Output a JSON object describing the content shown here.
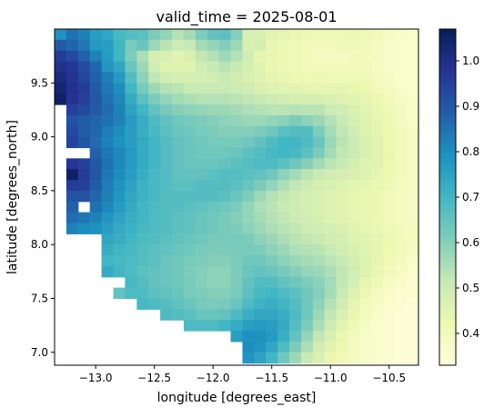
{
  "chart_data": {
    "type": "heatmap",
    "title": "valid_time = 2025-08-01",
    "xlabel": "longitude [degrees_east]",
    "ylabel": "latitude [degrees_north]",
    "xlim": [
      -13.35,
      -10.25
    ],
    "ylim": [
      6.88,
      10.0
    ],
    "x_ticks": [
      -13.0,
      -12.5,
      -12.0,
      -11.5,
      -11.0,
      -10.5
    ],
    "x_tick_labels": [
      "−13.0",
      "−12.5",
      "−12.0",
      "−11.5",
      "−11.0",
      "−10.5"
    ],
    "y_ticks": [
      7.0,
      7.5,
      8.0,
      8.5,
      9.0,
      9.5
    ],
    "y_tick_labels": [
      "7.0",
      "7.5",
      "8.0",
      "8.5",
      "9.0",
      "9.5"
    ],
    "colorbar": {
      "colormap": "YlGnBu",
      "vmin": 0.33,
      "vmax": 1.07,
      "ticks": [
        0.4,
        0.5,
        0.6,
        0.7,
        0.8,
        0.9,
        1.0
      ],
      "tick_labels": [
        "0.4",
        "0.5",
        "0.6",
        "0.7",
        "0.8",
        "0.9",
        "1.0"
      ]
    },
    "grid": false,
    "grid_origin": {
      "lon0": -13.35,
      "lat_top": 10.0
    },
    "cell_size_deg": 0.1,
    "cols": 31,
    "rows": 31,
    "values": [
      [
        0.79,
        0.85,
        0.82,
        0.76,
        0.74,
        0.69,
        0.67,
        0.66,
        0.61,
        0.58,
        0.54,
        0.56,
        0.61,
        0.65,
        0.66,
        0.6,
        0.47,
        0.47,
        0.45,
        0.44,
        0.43,
        0.42,
        0.41,
        0.41,
        0.41,
        0.42,
        0.41,
        0.4,
        0.38,
        0.37,
        0.36
      ],
      [
        0.89,
        0.87,
        0.84,
        0.77,
        0.76,
        0.7,
        0.62,
        0.64,
        0.57,
        0.53,
        0.5,
        0.51,
        0.56,
        0.58,
        0.6,
        0.57,
        0.47,
        0.48,
        0.43,
        0.42,
        0.41,
        0.4,
        0.4,
        0.4,
        0.41,
        0.41,
        0.4,
        0.39,
        0.37,
        0.36,
        0.36
      ],
      [
        0.96,
        0.93,
        0.88,
        0.82,
        0.77,
        0.7,
        0.61,
        0.55,
        0.48,
        0.47,
        0.45,
        0.47,
        0.52,
        0.54,
        0.57,
        0.54,
        0.49,
        0.44,
        0.43,
        0.42,
        0.41,
        0.4,
        0.39,
        0.39,
        0.39,
        0.4,
        0.4,
        0.39,
        0.37,
        0.36,
        0.36
      ],
      [
        0.99,
        0.97,
        0.93,
        0.87,
        0.78,
        0.74,
        0.64,
        0.57,
        0.49,
        0.46,
        0.46,
        0.46,
        0.49,
        0.51,
        0.53,
        0.51,
        0.48,
        0.45,
        0.43,
        0.42,
        0.41,
        0.4,
        0.4,
        0.4,
        0.4,
        0.4,
        0.4,
        0.38,
        0.37,
        0.36,
        0.36
      ],
      [
        1.01,
        0.98,
        0.94,
        0.88,
        0.83,
        0.77,
        0.67,
        0.59,
        0.52,
        0.49,
        0.48,
        0.48,
        0.48,
        0.49,
        0.51,
        0.49,
        0.47,
        0.46,
        0.44,
        0.43,
        0.42,
        0.42,
        0.42,
        0.41,
        0.41,
        0.41,
        0.41,
        0.39,
        0.38,
        0.36,
        0.36
      ],
      [
        1.03,
        0.99,
        0.96,
        0.89,
        0.84,
        0.8,
        0.7,
        0.62,
        0.57,
        0.54,
        0.53,
        0.51,
        0.51,
        0.51,
        0.51,
        0.5,
        0.49,
        0.47,
        0.46,
        0.45,
        0.45,
        0.44,
        0.44,
        0.44,
        0.44,
        0.43,
        0.42,
        0.4,
        0.39,
        0.37,
        0.36
      ],
      [
        1.05,
        0.98,
        0.95,
        0.9,
        0.85,
        0.81,
        0.73,
        0.66,
        0.61,
        0.58,
        0.56,
        0.55,
        0.54,
        0.54,
        0.54,
        0.53,
        0.52,
        0.51,
        0.5,
        0.49,
        0.48,
        0.48,
        0.48,
        0.47,
        0.46,
        0.45,
        0.44,
        0.42,
        0.4,
        0.38,
        0.37
      ],
      [
        null,
        0.95,
        0.93,
        0.89,
        0.86,
        0.82,
        0.75,
        0.7,
        0.65,
        0.62,
        0.6,
        0.59,
        0.58,
        0.57,
        0.57,
        0.56,
        0.55,
        0.54,
        0.53,
        0.53,
        0.54,
        0.53,
        0.53,
        0.5,
        0.49,
        0.47,
        0.45,
        0.43,
        0.41,
        0.39,
        0.37
      ],
      [
        null,
        0.91,
        0.89,
        0.87,
        0.85,
        0.82,
        0.77,
        0.72,
        0.68,
        0.65,
        0.63,
        0.62,
        0.61,
        0.6,
        0.59,
        0.58,
        0.57,
        0.57,
        0.58,
        0.59,
        0.61,
        0.59,
        0.57,
        0.54,
        0.51,
        0.48,
        0.46,
        0.44,
        0.42,
        0.39,
        0.37
      ],
      [
        null,
        0.93,
        0.89,
        0.87,
        0.83,
        0.8,
        0.76,
        0.72,
        0.69,
        0.66,
        0.64,
        0.63,
        0.62,
        0.61,
        0.6,
        0.6,
        0.6,
        0.61,
        0.63,
        0.66,
        0.67,
        0.67,
        0.61,
        0.56,
        0.52,
        0.49,
        0.46,
        0.44,
        0.42,
        0.4,
        0.38
      ],
      [
        null,
        0.94,
        0.9,
        0.86,
        0.82,
        0.79,
        0.76,
        0.73,
        0.7,
        0.67,
        0.65,
        0.64,
        0.63,
        0.62,
        0.62,
        0.62,
        0.63,
        0.65,
        0.68,
        0.7,
        0.7,
        0.68,
        0.64,
        0.57,
        0.53,
        0.5,
        0.47,
        0.45,
        0.42,
        0.4,
        0.38
      ],
      [
        null,
        null,
        null,
        0.88,
        0.84,
        0.81,
        0.77,
        0.73,
        0.7,
        0.67,
        0.65,
        0.64,
        0.63,
        0.63,
        0.63,
        0.64,
        0.66,
        0.67,
        0.69,
        0.7,
        0.69,
        0.66,
        0.61,
        0.56,
        0.52,
        0.5,
        0.47,
        0.45,
        0.43,
        0.4,
        0.38
      ],
      [
        null,
        0.97,
        0.95,
        0.9,
        0.85,
        0.81,
        0.77,
        0.73,
        0.7,
        0.67,
        0.65,
        0.64,
        0.64,
        0.64,
        0.65,
        0.66,
        0.67,
        0.68,
        0.68,
        0.66,
        0.63,
        0.6,
        0.56,
        0.53,
        0.51,
        0.48,
        0.46,
        0.45,
        0.42,
        0.4,
        0.38
      ],
      [
        null,
        1.05,
        0.96,
        0.9,
        0.84,
        0.8,
        0.76,
        0.72,
        0.69,
        0.67,
        0.65,
        0.65,
        0.65,
        0.66,
        0.67,
        0.67,
        0.66,
        0.65,
        0.63,
        0.59,
        0.56,
        0.53,
        0.51,
        0.49,
        0.48,
        0.47,
        0.46,
        0.44,
        0.42,
        0.4,
        0.38
      ],
      [
        null,
        0.96,
        0.95,
        0.89,
        0.83,
        0.79,
        0.75,
        0.71,
        0.69,
        0.67,
        0.66,
        0.66,
        0.67,
        0.67,
        0.67,
        0.66,
        0.64,
        0.61,
        0.58,
        0.55,
        0.52,
        0.5,
        0.48,
        0.47,
        0.46,
        0.45,
        0.44,
        0.43,
        0.41,
        0.39,
        0.38
      ],
      [
        null,
        0.91,
        0.91,
        0.87,
        0.82,
        0.78,
        0.74,
        0.71,
        0.69,
        0.67,
        0.67,
        0.67,
        0.67,
        0.67,
        0.66,
        0.64,
        0.61,
        0.57,
        0.54,
        0.52,
        0.5,
        0.48,
        0.47,
        0.46,
        0.45,
        0.44,
        0.43,
        0.42,
        0.4,
        0.39,
        0.38
      ],
      [
        null,
        0.88,
        null,
        0.85,
        0.81,
        0.77,
        0.73,
        0.7,
        0.68,
        0.67,
        0.67,
        0.66,
        0.65,
        0.64,
        0.63,
        0.61,
        0.58,
        0.55,
        0.53,
        0.51,
        0.5,
        0.48,
        0.47,
        0.46,
        0.45,
        0.44,
        0.43,
        0.42,
        0.4,
        0.39,
        0.38
      ],
      [
        null,
        0.86,
        0.84,
        0.82,
        0.78,
        0.75,
        0.72,
        0.7,
        0.68,
        0.67,
        0.66,
        0.65,
        0.64,
        0.63,
        0.62,
        0.6,
        0.58,
        0.56,
        0.54,
        0.52,
        0.5,
        0.49,
        0.48,
        0.46,
        0.45,
        0.44,
        0.43,
        0.42,
        0.4,
        0.39,
        0.38
      ],
      [
        null,
        0.82,
        0.8,
        0.79,
        0.76,
        0.73,
        0.71,
        0.69,
        0.68,
        0.67,
        0.66,
        0.65,
        0.64,
        0.63,
        0.62,
        0.61,
        0.59,
        0.57,
        0.55,
        0.53,
        0.52,
        0.5,
        0.49,
        0.48,
        0.47,
        0.45,
        0.44,
        0.43,
        0.41,
        0.4,
        0.39
      ],
      [
        null,
        null,
        null,
        null,
        0.74,
        0.72,
        0.7,
        0.68,
        0.67,
        0.66,
        0.65,
        0.64,
        0.63,
        0.62,
        0.62,
        0.62,
        0.61,
        0.59,
        0.57,
        0.55,
        0.53,
        0.52,
        0.51,
        0.49,
        0.48,
        0.46,
        0.45,
        0.44,
        0.42,
        0.4,
        0.39
      ],
      [
        null,
        null,
        null,
        null,
        0.72,
        0.7,
        0.69,
        0.67,
        0.66,
        0.65,
        0.64,
        0.63,
        0.62,
        0.61,
        0.61,
        0.62,
        0.62,
        0.61,
        0.59,
        0.57,
        0.55,
        0.54,
        0.53,
        0.51,
        0.49,
        0.47,
        0.45,
        0.44,
        0.42,
        0.4,
        0.38
      ],
      [
        null,
        null,
        null,
        null,
        0.7,
        0.69,
        0.68,
        0.67,
        0.66,
        0.64,
        0.63,
        0.62,
        0.61,
        0.6,
        0.6,
        0.61,
        0.63,
        0.63,
        0.61,
        0.59,
        0.57,
        0.56,
        0.55,
        0.53,
        0.51,
        0.48,
        0.46,
        0.44,
        0.41,
        0.39,
        0.37
      ],
      [
        null,
        null,
        null,
        null,
        0.73,
        0.7,
        0.68,
        0.66,
        0.65,
        0.64,
        0.63,
        0.61,
        0.6,
        0.59,
        0.59,
        0.61,
        0.64,
        0.65,
        0.64,
        0.62,
        0.6,
        0.58,
        0.57,
        0.55,
        0.52,
        0.49,
        0.46,
        0.43,
        0.4,
        0.38,
        0.36
      ],
      [
        null,
        null,
        null,
        null,
        null,
        null,
        0.69,
        0.67,
        0.65,
        0.64,
        0.63,
        0.62,
        0.6,
        0.59,
        0.59,
        0.61,
        0.65,
        0.67,
        0.67,
        0.65,
        0.63,
        0.61,
        0.59,
        0.56,
        0.52,
        0.48,
        0.44,
        0.41,
        0.38,
        0.37,
        0.35
      ],
      [
        null,
        null,
        null,
        null,
        null,
        0.65,
        0.68,
        0.68,
        0.66,
        0.65,
        0.64,
        0.62,
        0.61,
        0.6,
        0.6,
        0.62,
        0.66,
        0.69,
        0.7,
        0.68,
        0.66,
        0.63,
        0.6,
        0.56,
        0.51,
        0.46,
        0.42,
        0.39,
        0.37,
        0.35,
        0.35
      ],
      [
        null,
        null,
        null,
        null,
        null,
        null,
        null,
        0.69,
        0.68,
        0.67,
        0.65,
        0.64,
        0.62,
        0.61,
        0.62,
        0.64,
        0.68,
        0.71,
        0.72,
        0.7,
        0.67,
        0.63,
        0.59,
        0.54,
        0.49,
        0.44,
        0.4,
        0.38,
        0.36,
        0.35,
        0.34
      ],
      [
        null,
        null,
        null,
        null,
        null,
        null,
        null,
        null,
        null,
        0.68,
        0.67,
        0.66,
        0.64,
        0.64,
        0.65,
        0.68,
        0.72,
        0.74,
        0.74,
        0.72,
        0.68,
        0.63,
        0.57,
        0.52,
        0.47,
        0.43,
        0.39,
        0.37,
        0.35,
        0.34,
        0.34
      ],
      [
        null,
        null,
        null,
        null,
        null,
        null,
        null,
        null,
        null,
        null,
        null,
        0.68,
        0.68,
        0.68,
        0.7,
        0.73,
        0.76,
        0.77,
        0.76,
        0.73,
        0.67,
        0.61,
        0.55,
        0.5,
        0.45,
        0.41,
        0.38,
        0.36,
        0.35,
        0.34,
        0.34
      ],
      [
        null,
        null,
        null,
        null,
        null,
        null,
        null,
        null,
        null,
        null,
        null,
        null,
        null,
        null,
        null,
        0.76,
        0.79,
        0.79,
        0.77,
        0.72,
        0.65,
        0.58,
        0.52,
        0.47,
        0.43,
        0.4,
        0.37,
        0.36,
        0.35,
        0.34,
        0.34
      ],
      [
        null,
        null,
        null,
        null,
        null,
        null,
        null,
        null,
        null,
        null,
        null,
        null,
        null,
        null,
        null,
        null,
        0.8,
        0.78,
        0.74,
        0.68,
        0.61,
        0.55,
        0.49,
        0.45,
        0.42,
        0.39,
        0.37,
        0.36,
        0.35,
        0.34,
        0.34
      ],
      [
        null,
        null,
        null,
        null,
        null,
        null,
        null,
        null,
        null,
        null,
        null,
        null,
        null,
        null,
        null,
        null,
        0.78,
        0.75,
        0.7,
        0.63,
        0.57,
        0.51,
        0.47,
        0.43,
        0.41,
        0.39,
        0.37,
        0.36,
        0.35,
        0.34,
        0.34
      ]
    ]
  }
}
